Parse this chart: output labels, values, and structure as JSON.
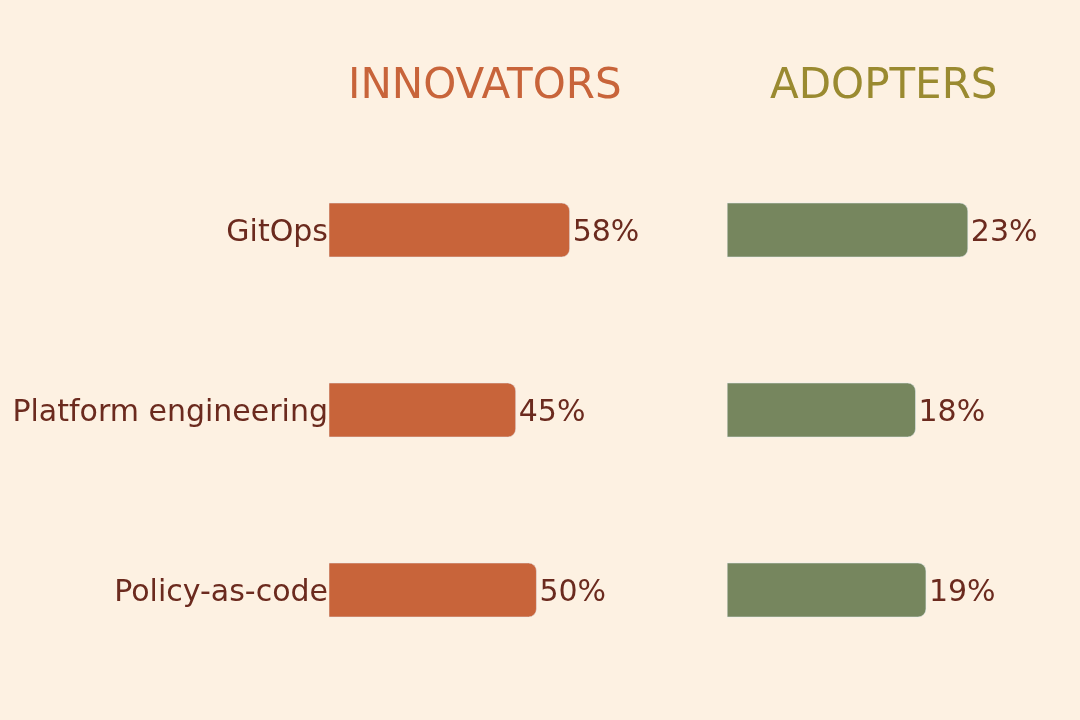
{
  "chart_data": [
    {
      "type": "bar",
      "orientation": "horizontal",
      "title": "INNOVATORS",
      "categories": [
        "GitOps",
        "Platform engineering",
        "Policy-as-code"
      ],
      "values": [
        58,
        45,
        50
      ],
      "color": "#c8643a",
      "value_labels": [
        "58%",
        "45%",
        "50%"
      ],
      "tick_labels": "y"
    },
    {
      "type": "bar",
      "orientation": "horizontal",
      "title": "ADOPTERS",
      "categories": [
        null,
        null,
        null
      ],
      "values": [
        23,
        18,
        19
      ],
      "color": "#76865e",
      "value_labels": [
        "23%",
        "18%",
        "19%"
      ],
      "tick_labels": false
    }
  ]
}
